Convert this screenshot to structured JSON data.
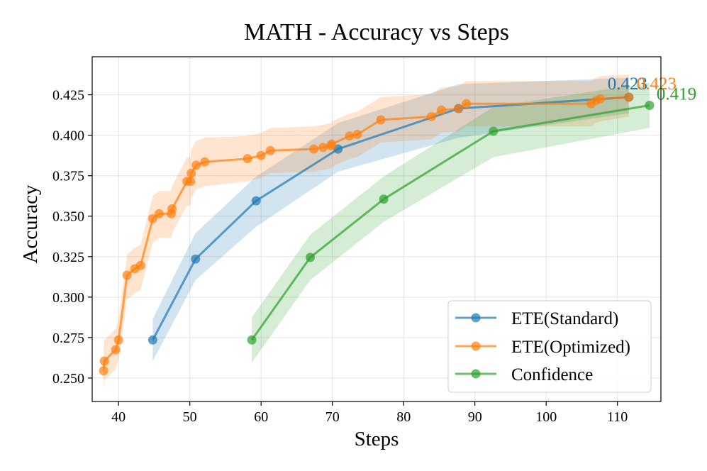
{
  "chart_data": {
    "type": "line",
    "title": "MATH - Accuracy vs Steps",
    "xlabel": "Steps",
    "ylabel": "Accuracy",
    "xlim": [
      36.3,
      116.1
    ],
    "ylim": [
      0.2355,
      0.4485
    ],
    "xticks": [
      40,
      50,
      60,
      70,
      80,
      90,
      100,
      110
    ],
    "xtick_labels": [
      "40",
      "50",
      "60",
      "70",
      "80",
      "90",
      "100",
      "110"
    ],
    "yticks": [
      0.25,
      0.275,
      0.3,
      0.325,
      0.35,
      0.375,
      0.4,
      0.425
    ],
    "ytick_labels": [
      "0.250",
      "0.275",
      "0.300",
      "0.325",
      "0.350",
      "0.375",
      "0.400",
      "0.425"
    ],
    "grid": true,
    "legend_position": "lower-right",
    "series": [
      {
        "name": "ETE(Standard)",
        "color": "#1f77b4",
        "x": [
          44.8,
          50.8,
          59.3,
          70.8,
          87.7,
          111.6
        ],
        "y": [
          0.2735,
          0.3235,
          0.3595,
          0.3915,
          0.4165,
          0.4235
        ],
        "band_lower": [
          0.2605,
          0.3105,
          0.3435,
          0.3775,
          0.3985,
          0.4135
        ],
        "band_upper": [
          0.2865,
          0.3395,
          0.3745,
          0.4075,
          0.4315,
          0.4355
        ],
        "end_label": "0.423"
      },
      {
        "name": "ETE(Optimized)",
        "color": "#ff7f0e",
        "x": [
          37.9,
          38.0,
          39.6,
          40.0,
          41.2,
          42.3,
          43.1,
          44.8,
          45.7,
          47.4,
          47.5,
          49.6,
          50.1,
          50.2,
          50.9,
          52.1,
          58.1,
          60.0,
          61.3,
          67.4,
          68.7,
          69.8,
          69.9,
          72.4,
          73.5,
          76.8,
          83.9,
          85.3,
          87.7,
          88.8,
          106.3,
          107.0,
          107.6,
          111.6
        ],
        "y": [
          0.2545,
          0.2605,
          0.2675,
          0.2735,
          0.3135,
          0.3175,
          0.3195,
          0.3485,
          0.3515,
          0.3515,
          0.3545,
          0.3715,
          0.3715,
          0.3765,
          0.3815,
          0.3835,
          0.3855,
          0.3875,
          0.3905,
          0.3915,
          0.3925,
          0.3935,
          0.3945,
          0.3995,
          0.4005,
          0.4095,
          0.4115,
          0.4155,
          0.4165,
          0.4195,
          0.4195,
          0.4215,
          0.4225,
          0.4235
        ],
        "band_lower": [
          0.2425,
          0.2485,
          0.2555,
          0.2615,
          0.2985,
          0.3025,
          0.3045,
          0.3335,
          0.3365,
          0.3365,
          0.3395,
          0.3565,
          0.3565,
          0.3615,
          0.3665,
          0.3685,
          0.3715,
          0.3735,
          0.3765,
          0.3775,
          0.3785,
          0.3795,
          0.3805,
          0.3855,
          0.3865,
          0.3955,
          0.3975,
          0.4015,
          0.4025,
          0.4055,
          0.4055,
          0.4075,
          0.4085,
          0.4115
        ],
        "band_upper": [
          0.2675,
          0.2735,
          0.2805,
          0.2865,
          0.3265,
          0.3305,
          0.3325,
          0.3625,
          0.3655,
          0.3655,
          0.3685,
          0.3865,
          0.3865,
          0.3915,
          0.3965,
          0.3985,
          0.3995,
          0.4015,
          0.4045,
          0.4055,
          0.4065,
          0.4075,
          0.4085,
          0.4135,
          0.4145,
          0.4235,
          0.4255,
          0.4295,
          0.4305,
          0.4335,
          0.4335,
          0.4355,
          0.4365,
          0.4375
        ],
        "end_label": "0.423"
      },
      {
        "name": "Confidence",
        "color": "#2ca02c",
        "x": [
          58.7,
          66.9,
          77.2,
          92.6,
          114.5
        ],
        "y": [
          0.2735,
          0.3245,
          0.3605,
          0.4025,
          0.4185
        ],
        "band_lower": [
          0.2595,
          0.3105,
          0.3465,
          0.3865,
          0.4045
        ],
        "band_upper": [
          0.2875,
          0.3385,
          0.3745,
          0.4175,
          0.4325
        ],
        "end_label": "0.419"
      }
    ]
  }
}
